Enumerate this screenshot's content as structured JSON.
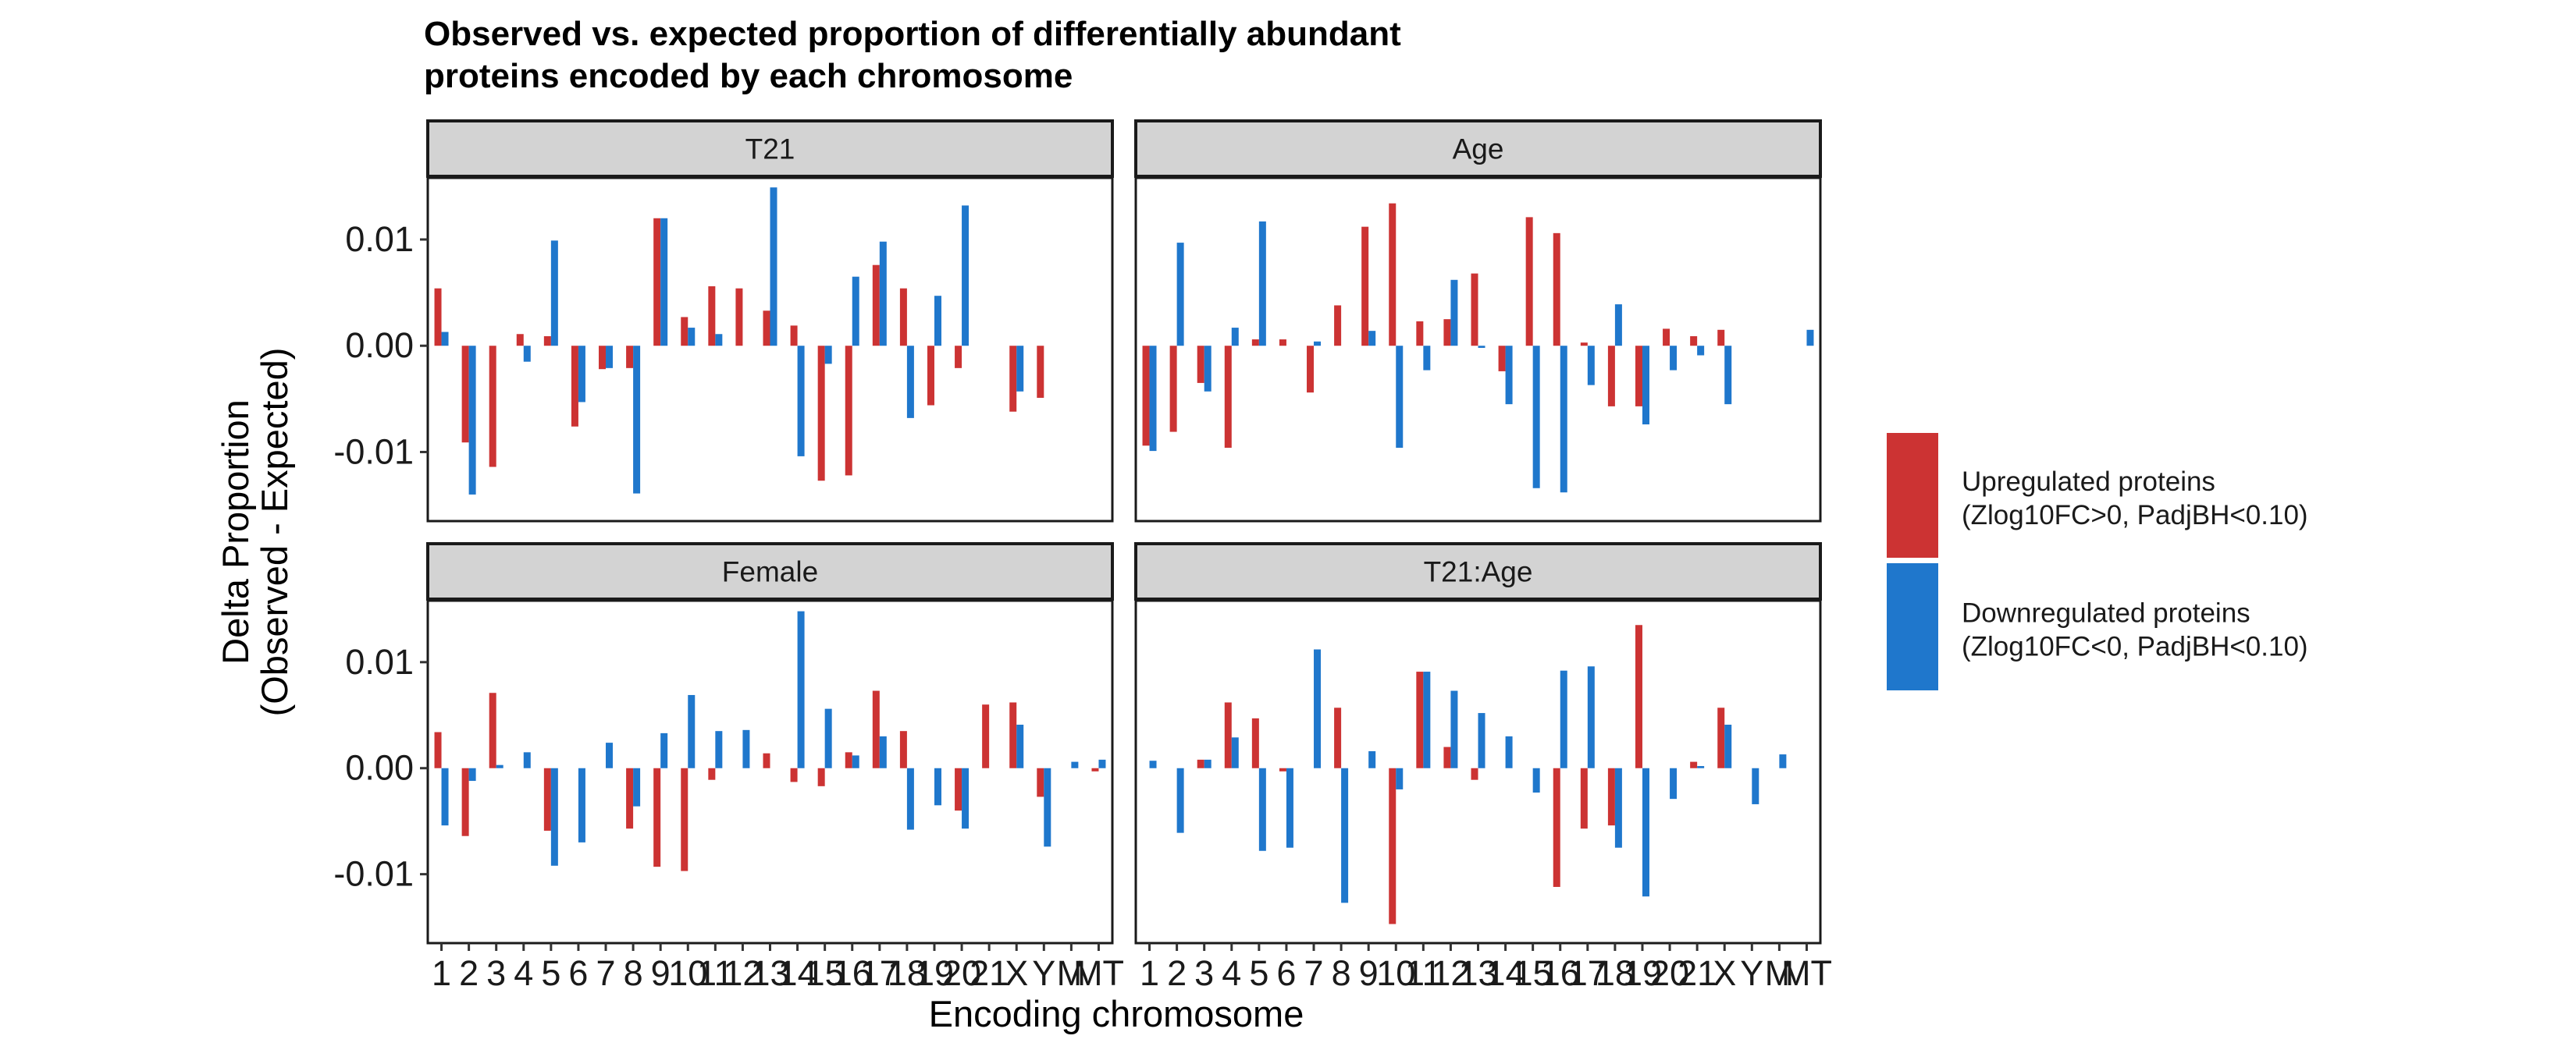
{
  "chart_data": {
    "type": "bar",
    "title_lines": [
      "Observed vs. expected proportion of differentially abundant",
      "proteins encoded by each chromosome"
    ],
    "xlabel": "Encoding chromosome",
    "ylabel_lines": [
      "Delta Proportion",
      "(Observed - Expected)"
    ],
    "ylim": [
      -0.0165,
      0.0158
    ],
    "yticks": [
      -0.01,
      0.0,
      0.01
    ],
    "ytick_labels": [
      "-0.01",
      "0.00",
      "0.01"
    ],
    "grid": false,
    "legend_position": "right",
    "categories": [
      "1",
      "2",
      "3",
      "4",
      "5",
      "6",
      "7",
      "8",
      "9",
      "10",
      "11",
      "12",
      "13",
      "14",
      "15",
      "16",
      "17",
      "18",
      "19",
      "20",
      "21",
      "X",
      "Y",
      "M",
      "MT"
    ],
    "tick_labels": [
      "1",
      "2",
      "3",
      "4",
      "5",
      "6",
      "7",
      "8",
      "9",
      "10",
      "11",
      "12",
      "13",
      "14",
      "15",
      "16",
      "17",
      "18",
      "19",
      "20",
      "21",
      "X",
      "Y",
      "M",
      "MT"
    ],
    "colors": {
      "up": "#CC3333",
      "down": "#1F77CC"
    },
    "legend": [
      {
        "key": "up",
        "line1": "Upregulated proteins",
        "line2": "(Zlog10FC>0, PadjBH<0.10)"
      },
      {
        "key": "down",
        "line1": "Downregulated proteins",
        "line2": "(Zlog10FC<0, PadjBH<0.10)"
      }
    ],
    "panels": [
      {
        "strip": "T21",
        "series": [
          {
            "name": "Upregulated proteins",
            "key": "up",
            "values": [
              0.0054,
              -0.0091,
              -0.0114,
              0.0011,
              0.0009,
              -0.0076,
              -0.0022,
              -0.0021,
              0.012,
              0.0027,
              0.0056,
              0.0054,
              0.0033,
              0.0019,
              -0.0127,
              -0.0122,
              0.0076,
              0.0054,
              -0.0056,
              -0.0021,
              0.0,
              -0.0062,
              -0.0049,
              0.0,
              0.0
            ]
          },
          {
            "name": "Downregulated proteins",
            "key": "down",
            "values": [
              0.0013,
              -0.014,
              0.0,
              -0.0015,
              0.0099,
              -0.0053,
              -0.0021,
              -0.0139,
              0.012,
              0.0017,
              0.0011,
              0.0,
              0.0149,
              -0.0104,
              -0.0017,
              0.0065,
              0.0098,
              -0.0068,
              0.0047,
              0.0132,
              0.0,
              -0.0043,
              0.0,
              0.0,
              0.0
            ]
          }
        ]
      },
      {
        "strip": "Age",
        "series": [
          {
            "name": "Upregulated proteins",
            "key": "up",
            "values": [
              -0.0094,
              -0.0081,
              -0.0035,
              -0.0096,
              0.0006,
              0.0006,
              -0.0044,
              0.0038,
              0.0112,
              0.0134,
              0.0023,
              0.0025,
              0.0068,
              -0.0024,
              0.0121,
              0.0106,
              0.0003,
              -0.0057,
              -0.0057,
              0.0016,
              0.0009,
              0.0015,
              0.0,
              0.0,
              0.0
            ]
          },
          {
            "name": "Downregulated proteins",
            "key": "down",
            "values": [
              -0.0099,
              0.0097,
              -0.0043,
              0.0017,
              0.0117,
              0.0,
              0.0004,
              0.0,
              0.0014,
              -0.0096,
              -0.0023,
              0.0062,
              -0.0002,
              -0.0055,
              -0.0134,
              -0.0138,
              -0.0037,
              0.0039,
              -0.0074,
              -0.0023,
              -0.0009,
              -0.0055,
              0.0,
              0.0,
              0.0015
            ]
          }
        ]
      },
      {
        "strip": "Female",
        "series": [
          {
            "name": "Upregulated proteins",
            "key": "up",
            "values": [
              0.0034,
              -0.0064,
              0.0071,
              0.0,
              -0.0059,
              0.0,
              0.0,
              -0.0057,
              -0.0093,
              -0.0097,
              -0.0011,
              0.0,
              0.0014,
              -0.0013,
              -0.0017,
              0.0015,
              0.0073,
              0.0035,
              0.0,
              -0.004,
              0.006,
              0.0062,
              -0.0027,
              0.0,
              -0.0003
            ]
          },
          {
            "name": "Downregulated proteins",
            "key": "down",
            "values": [
              -0.0054,
              -0.0012,
              0.0003,
              0.0015,
              -0.0092,
              -0.007,
              0.0024,
              -0.0036,
              0.0033,
              0.0069,
              0.0035,
              0.0036,
              0.0,
              0.0148,
              0.0056,
              0.0012,
              0.003,
              -0.0058,
              -0.0035,
              -0.0057,
              0.0,
              0.0041,
              -0.0074,
              0.0006,
              0.0008
            ]
          }
        ]
      },
      {
        "strip": "T21:Age",
        "series": [
          {
            "name": "Upregulated proteins",
            "key": "up",
            "values": [
              0.0,
              0.0,
              0.0008,
              0.0062,
              0.0047,
              -0.0003,
              0.0,
              0.0057,
              0.0,
              -0.0147,
              0.0091,
              0.002,
              -0.0011,
              0.0,
              0.0,
              -0.0112,
              -0.0057,
              -0.0054,
              0.0135,
              0.0,
              0.0006,
              0.0057,
              0.0,
              0.0,
              0.0
            ]
          },
          {
            "name": "Downregulated proteins",
            "key": "down",
            "values": [
              0.0007,
              -0.0061,
              0.0008,
              0.0029,
              -0.0078,
              -0.0075,
              0.0112,
              -0.0127,
              0.0016,
              -0.002,
              0.0091,
              0.0073,
              0.0052,
              0.003,
              -0.0023,
              0.0092,
              0.0096,
              -0.0075,
              -0.0121,
              -0.0029,
              0.0002,
              0.0041,
              -0.0034,
              0.0013,
              0.0
            ]
          }
        ]
      }
    ]
  }
}
